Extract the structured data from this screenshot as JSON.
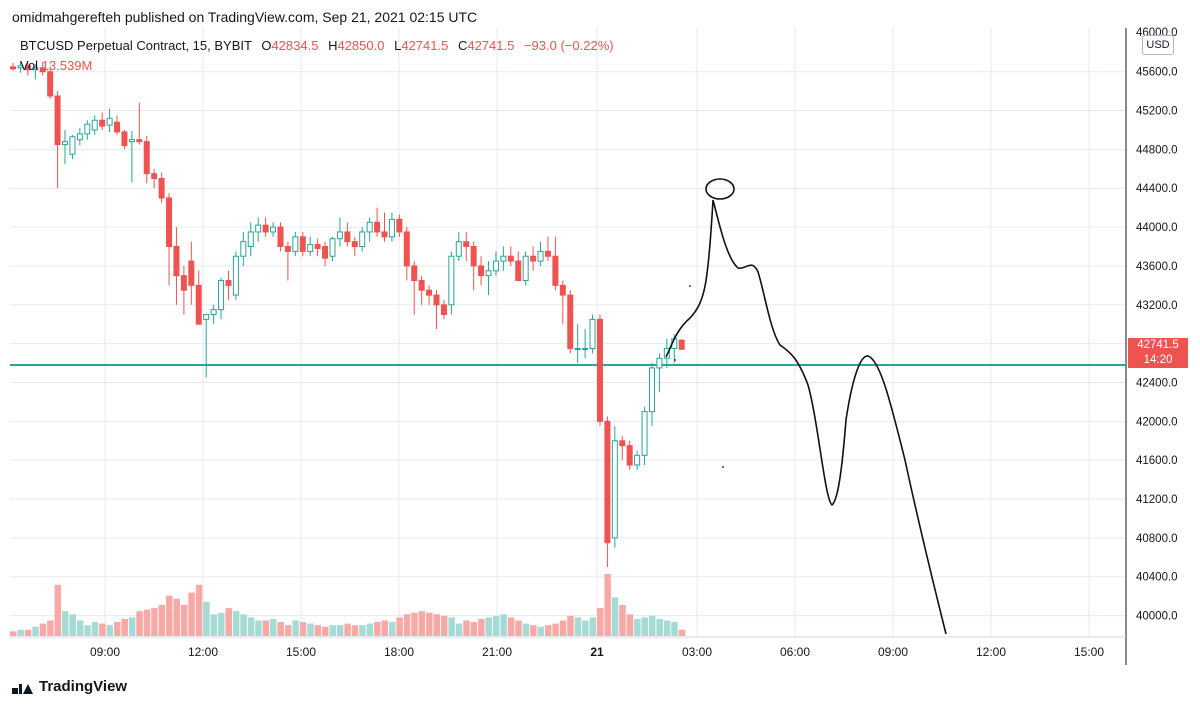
{
  "header": {
    "publisher_line": "omidmahgerefteh published on TradingView.com, Sep 21, 2021 02:15 UTC"
  },
  "legend": {
    "symbol": "BTCUSD Perpetual Contract, 15, BYBIT",
    "open_label": "O",
    "open": "42834.5",
    "high_label": "H",
    "high": "42850.0",
    "low_label": "L",
    "low": "42741.5",
    "close_label": "C",
    "close": "42741.5",
    "change": "−93.0 (−0.22%)",
    "vol_label": "Vol",
    "vol": "13.539M"
  },
  "price_axis": {
    "currency": "USD",
    "ticks": [
      "46000.0",
      "45600.0",
      "45200.0",
      "44800.0",
      "44400.0",
      "44000.0",
      "43600.0",
      "43200.0",
      "42400.0",
      "42000.0",
      "41600.0",
      "41200.0",
      "40800.0",
      "40400.0",
      "40000.0"
    ],
    "last_price": "42741.5",
    "countdown": "14:20"
  },
  "time_axis": {
    "ticks": [
      "09:00",
      "12:00",
      "15:00",
      "18:00",
      "21:00",
      "21",
      "03:00",
      "06:00",
      "09:00",
      "12:00",
      "15:00"
    ]
  },
  "footer": {
    "brand": "TradingView"
  },
  "colors": {
    "up": "#26a69a",
    "down": "#ef5350",
    "level_line": "#22ab94",
    "grid": "#e6eaf0"
  },
  "chart_data": {
    "type": "candlestick",
    "symbol": "BTCUSD Perpetual Contract",
    "interval": "15",
    "exchange": "BYBIT",
    "y_range": [
      39800,
      46050
    ],
    "horizontal_level": 42580,
    "candles": [
      {
        "o": 45650,
        "h": 45690,
        "l": 45610,
        "c": 45630
      },
      {
        "o": 45640,
        "h": 45700,
        "l": 45590,
        "c": 45660
      },
      {
        "o": 45660,
        "h": 45690,
        "l": 45560,
        "c": 45620
      },
      {
        "o": 45620,
        "h": 45680,
        "l": 45520,
        "c": 45640
      },
      {
        "o": 45640,
        "h": 45700,
        "l": 45560,
        "c": 45600
      },
      {
        "o": 45600,
        "h": 45650,
        "l": 45320,
        "c": 45350
      },
      {
        "o": 45350,
        "h": 45400,
        "l": 44400,
        "c": 44850
      },
      {
        "o": 44850,
        "h": 45000,
        "l": 44650,
        "c": 44880
      },
      {
        "o": 44750,
        "h": 44950,
        "l": 44700,
        "c": 44930
      },
      {
        "o": 44900,
        "h": 45020,
        "l": 44840,
        "c": 44960
      },
      {
        "o": 44960,
        "h": 45100,
        "l": 44900,
        "c": 45060
      },
      {
        "o": 45000,
        "h": 45150,
        "l": 44950,
        "c": 45100
      },
      {
        "o": 45100,
        "h": 45180,
        "l": 45000,
        "c": 45040
      },
      {
        "o": 45050,
        "h": 45220,
        "l": 44980,
        "c": 45120
      },
      {
        "o": 45080,
        "h": 45150,
        "l": 44950,
        "c": 44980
      },
      {
        "o": 44980,
        "h": 45000,
        "l": 44800,
        "c": 44840
      },
      {
        "o": 44880,
        "h": 44990,
        "l": 44460,
        "c": 44900
      },
      {
        "o": 44900,
        "h": 45280,
        "l": 44850,
        "c": 44880
      },
      {
        "o": 44880,
        "h": 44940,
        "l": 44450,
        "c": 44550
      },
      {
        "o": 44550,
        "h": 44600,
        "l": 44400,
        "c": 44500
      },
      {
        "o": 44500,
        "h": 44560,
        "l": 44250,
        "c": 44300
      },
      {
        "o": 44300,
        "h": 44350,
        "l": 43400,
        "c": 43800
      },
      {
        "o": 43800,
        "h": 44000,
        "l": 43200,
        "c": 43500
      },
      {
        "o": 43500,
        "h": 43600,
        "l": 43100,
        "c": 43350
      },
      {
        "o": 43650,
        "h": 43850,
        "l": 43200,
        "c": 43400
      },
      {
        "o": 43400,
        "h": 43550,
        "l": 43000,
        "c": 43000
      },
      {
        "o": 43050,
        "h": 43100,
        "l": 42450,
        "c": 43100
      },
      {
        "o": 43100,
        "h": 43200,
        "l": 43000,
        "c": 43150
      },
      {
        "o": 43150,
        "h": 43480,
        "l": 43050,
        "c": 43450
      },
      {
        "o": 43450,
        "h": 43550,
        "l": 43250,
        "c": 43400
      },
      {
        "o": 43300,
        "h": 43750,
        "l": 43250,
        "c": 43700
      },
      {
        "o": 43700,
        "h": 43950,
        "l": 43600,
        "c": 43850
      },
      {
        "o": 43800,
        "h": 44050,
        "l": 43700,
        "c": 43950
      },
      {
        "o": 43950,
        "h": 44100,
        "l": 43850,
        "c": 44020
      },
      {
        "o": 44020,
        "h": 44100,
        "l": 43900,
        "c": 43950
      },
      {
        "o": 43950,
        "h": 44050,
        "l": 43900,
        "c": 44000
      },
      {
        "o": 44000,
        "h": 44050,
        "l": 43750,
        "c": 43800
      },
      {
        "o": 43800,
        "h": 43850,
        "l": 43450,
        "c": 43750
      },
      {
        "o": 43750,
        "h": 43950,
        "l": 43700,
        "c": 43900
      },
      {
        "o": 43900,
        "h": 43950,
        "l": 43700,
        "c": 43750
      },
      {
        "o": 43750,
        "h": 43900,
        "l": 43700,
        "c": 43820
      },
      {
        "o": 43820,
        "h": 43880,
        "l": 43700,
        "c": 43780
      },
      {
        "o": 43800,
        "h": 43850,
        "l": 43600,
        "c": 43680
      },
      {
        "o": 43700,
        "h": 43900,
        "l": 43650,
        "c": 43880
      },
      {
        "o": 43880,
        "h": 44100,
        "l": 43800,
        "c": 43950
      },
      {
        "o": 43950,
        "h": 44050,
        "l": 43800,
        "c": 43850
      },
      {
        "o": 43850,
        "h": 43900,
        "l": 43700,
        "c": 43800
      },
      {
        "o": 43800,
        "h": 44000,
        "l": 43750,
        "c": 43950
      },
      {
        "o": 43950,
        "h": 44100,
        "l": 43850,
        "c": 44050
      },
      {
        "o": 44050,
        "h": 44200,
        "l": 43900,
        "c": 43950
      },
      {
        "o": 43950,
        "h": 44150,
        "l": 43850,
        "c": 43900
      },
      {
        "o": 43900,
        "h": 44150,
        "l": 43850,
        "c": 44080
      },
      {
        "o": 44080,
        "h": 44130,
        "l": 43900,
        "c": 43950
      },
      {
        "o": 43950,
        "h": 44000,
        "l": 43450,
        "c": 43600
      },
      {
        "o": 43600,
        "h": 43650,
        "l": 43100,
        "c": 43450
      },
      {
        "o": 43450,
        "h": 43500,
        "l": 43200,
        "c": 43350
      },
      {
        "o": 43350,
        "h": 43400,
        "l": 43200,
        "c": 43300
      },
      {
        "o": 43300,
        "h": 43350,
        "l": 42950,
        "c": 43200
      },
      {
        "o": 43200,
        "h": 43250,
        "l": 43050,
        "c": 43100
      },
      {
        "o": 43200,
        "h": 43750,
        "l": 43100,
        "c": 43700
      },
      {
        "o": 43700,
        "h": 43950,
        "l": 43650,
        "c": 43850
      },
      {
        "o": 43850,
        "h": 43950,
        "l": 43650,
        "c": 43800
      },
      {
        "o": 43800,
        "h": 43850,
        "l": 43350,
        "c": 43600
      },
      {
        "o": 43600,
        "h": 43700,
        "l": 43400,
        "c": 43500
      },
      {
        "o": 43500,
        "h": 43650,
        "l": 43300,
        "c": 43550
      },
      {
        "o": 43550,
        "h": 43750,
        "l": 43500,
        "c": 43650
      },
      {
        "o": 43650,
        "h": 43800,
        "l": 43550,
        "c": 43700
      },
      {
        "o": 43700,
        "h": 43800,
        "l": 43600,
        "c": 43650
      },
      {
        "o": 43650,
        "h": 43750,
        "l": 43450,
        "c": 43450
      },
      {
        "o": 43450,
        "h": 43750,
        "l": 43400,
        "c": 43700
      },
      {
        "o": 43700,
        "h": 43800,
        "l": 43550,
        "c": 43650
      },
      {
        "o": 43650,
        "h": 43850,
        "l": 43600,
        "c": 43750
      },
      {
        "o": 43750,
        "h": 43900,
        "l": 43650,
        "c": 43700
      },
      {
        "o": 43700,
        "h": 43900,
        "l": 43350,
        "c": 43400
      },
      {
        "o": 43400,
        "h": 43450,
        "l": 43000,
        "c": 43300
      },
      {
        "o": 43300,
        "h": 43350,
        "l": 42700,
        "c": 42750
      },
      {
        "o": 42750,
        "h": 43000,
        "l": 42600,
        "c": 42750
      },
      {
        "o": 42750,
        "h": 42950,
        "l": 42650,
        "c": 42750
      },
      {
        "o": 42750,
        "h": 43100,
        "l": 42700,
        "c": 43050
      },
      {
        "o": 43050,
        "h": 43100,
        "l": 41950,
        "c": 42000
      },
      {
        "o": 42000,
        "h": 42050,
        "l": 40500,
        "c": 40750
      },
      {
        "o": 40800,
        "h": 41950,
        "l": 40700,
        "c": 41800
      },
      {
        "o": 41800,
        "h": 41850,
        "l": 41600,
        "c": 41750
      },
      {
        "o": 41750,
        "h": 41800,
        "l": 41500,
        "c": 41550
      },
      {
        "o": 41550,
        "h": 41700,
        "l": 41500,
        "c": 41650
      },
      {
        "o": 41650,
        "h": 42150,
        "l": 41550,
        "c": 42100
      },
      {
        "o": 42100,
        "h": 42600,
        "l": 41950,
        "c": 42550
      },
      {
        "o": 42550,
        "h": 42700,
        "l": 42300,
        "c": 42650
      },
      {
        "o": 42650,
        "h": 42850,
        "l": 42550,
        "c": 42750
      },
      {
        "o": 42750,
        "h": 42900,
        "l": 42600,
        "c": 42850
      },
      {
        "o": 42834.5,
        "h": 42850,
        "l": 42741.5,
        "c": 42741.5
      }
    ],
    "volume": [
      3,
      4,
      4,
      6,
      8,
      10,
      33,
      16,
      14,
      10,
      7,
      9,
      8,
      7,
      9,
      11,
      12,
      16,
      17,
      18,
      20,
      26,
      24,
      20,
      28,
      33,
      22,
      14,
      15,
      18,
      16,
      14,
      12,
      10,
      10,
      11,
      9,
      7,
      10,
      9,
      8,
      7,
      6,
      7,
      7,
      8,
      7,
      7,
      8,
      9,
      10,
      9,
      12,
      14,
      15,
      16,
      15,
      14,
      13,
      12,
      8,
      10,
      9,
      11,
      12,
      13,
      14,
      12,
      10,
      8,
      7,
      6,
      7,
      8,
      10,
      13,
      12,
      10,
      12,
      18,
      40,
      25,
      20,
      14,
      11,
      12,
      13,
      11,
      10,
      9,
      4
    ],
    "drawings": [
      "hand-drawn price path forecast",
      "circle annotation at projected top"
    ]
  }
}
